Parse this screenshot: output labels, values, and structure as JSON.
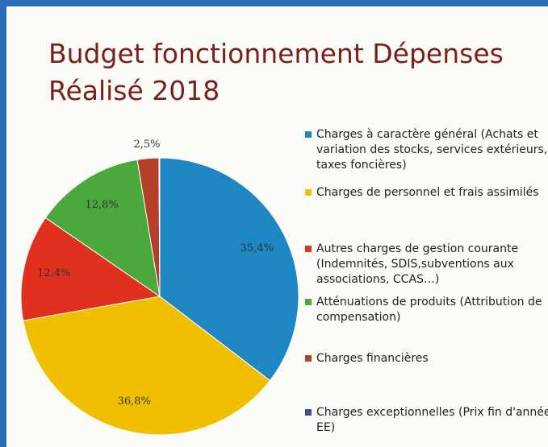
{
  "chart_data": {
    "type": "pie",
    "title": "Budget fonctionnement Dépenses Réalisé 2018",
    "categories": [
      "Charges à caractère général (Achats et variation des stocks, services extérieurs, taxes foncières)",
      "Charges de personnel et frais assimilés",
      "Autres charges de gestion courante (Indemnités, SDIS,subventions aux associations, CCAS…)",
      "Atténuations de produits (Attribution de compensation)",
      "Charges financières",
      "Charges exceptionnelles (Prix fin d'année EE)"
    ],
    "values": [
      35.4,
      36.8,
      12.4,
      12.8,
      2.5,
      0.1
    ],
    "value_labels": [
      "35,4%",
      "36,8%",
      "12,4%",
      "12,8%",
      "2,5%",
      null
    ],
    "colors": [
      "#1f86c4",
      "#f0c000",
      "#e0301e",
      "#4aa83c",
      "#b5402a",
      "#3b4a9a"
    ],
    "legend": "right"
  }
}
